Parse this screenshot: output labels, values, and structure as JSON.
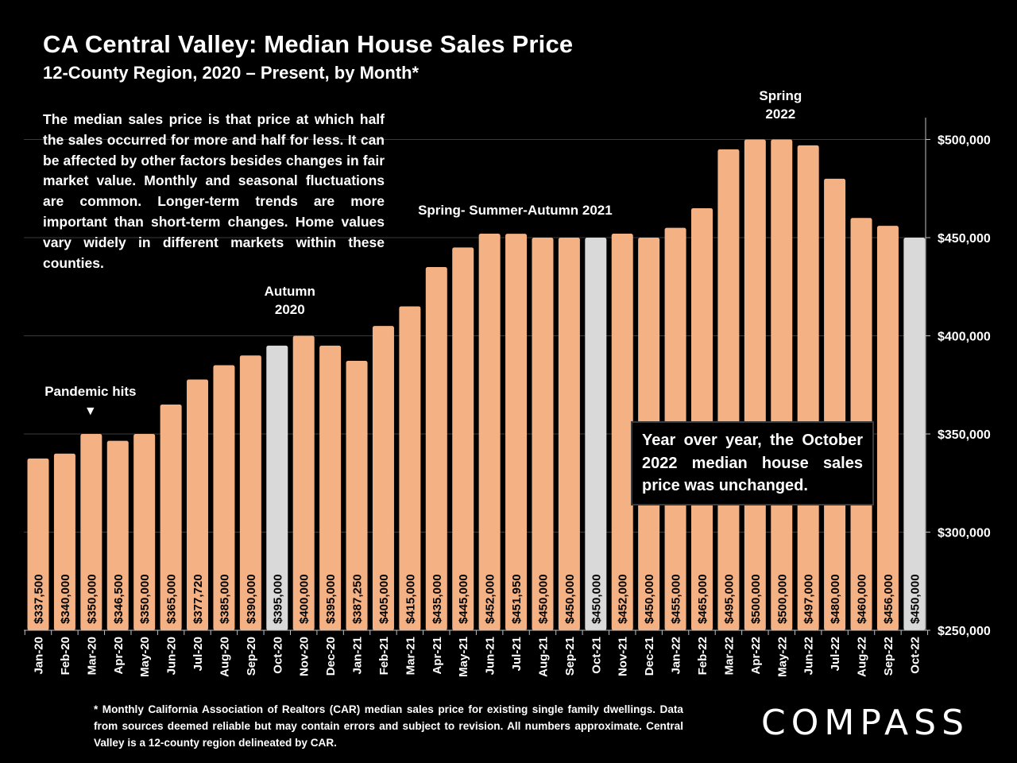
{
  "header": {
    "title": "CA Central Valley: Median House Sales Price",
    "subtitle": "12-County Region, 2020 – Present, by Month*"
  },
  "description": "The median sales price is that price at which half the sales occurred for more and half for less. It can be affected by other factors besides changes in fair market value. Monthly and seasonal fluctuations are common. Longer-term trends are more important than short-term changes. Home values vary widely in different markets within these counties.",
  "yoy_note": "Year over year, the October 2022 median house sales price was unchanged.",
  "footnote": "* Monthly California Association of Realtors (CAR) median sales price for existing single family dwellings. Data from sources deemed reliable but may contain errors and subject to revision. All numbers approximate. Central Valley is a 12-county region delineated by CAR.",
  "logo": {
    "prefix": "C",
    "mark": "O",
    "suffix": "MPASS"
  },
  "colors": {
    "bar": "#F4B183",
    "highlight": "#D9D9D9",
    "background": "#000000",
    "text": "#FFFFFF",
    "grid": "#3A3A3A"
  },
  "chart_data": {
    "type": "bar",
    "title": "CA Central Valley: Median House Sales Price",
    "ylabel": "",
    "xlabel": "",
    "ylim": [
      250000,
      510000
    ],
    "y_ticks": [
      250000,
      300000,
      350000,
      400000,
      450000,
      500000
    ],
    "y_tick_labels": [
      "$250,000",
      "$300,000",
      "$350,000",
      "$400,000",
      "$450,000",
      "$500,000"
    ],
    "categories": [
      "Jan-20",
      "Feb-20",
      "Mar-20",
      "Apr-20",
      "May-20",
      "Jun-20",
      "Jul-20",
      "Aug-20",
      "Sep-20",
      "Oct-20",
      "Nov-20",
      "Dec-20",
      "Jan-21",
      "Feb-21",
      "Mar-21",
      "Apr-21",
      "May-21",
      "Jun-21",
      "Jul-21",
      "Aug-21",
      "Sep-21",
      "Oct-21",
      "Nov-21",
      "Dec-21",
      "Jan-22",
      "Feb-22",
      "Mar-22",
      "Apr-22",
      "May-22",
      "Jun-22",
      "Jul-22",
      "Aug-22",
      "Sep-22",
      "Oct-22"
    ],
    "values": [
      337500,
      340000,
      350000,
      346500,
      350000,
      365000,
      377720,
      385000,
      390000,
      395000,
      400000,
      395000,
      387250,
      405000,
      415000,
      435000,
      445000,
      452000,
      451950,
      450000,
      450000,
      450000,
      452000,
      450000,
      455000,
      465000,
      495000,
      500000,
      500000,
      497000,
      480000,
      460000,
      456000,
      450000
    ],
    "value_labels": [
      "$337,500",
      "$340,000",
      "$350,000",
      "$346,500",
      "$350,000",
      "$365,000",
      "$377,720",
      "$385,000",
      "$390,000",
      "$395,000",
      "$400,000",
      "$395,000",
      "$387,250",
      "$405,000",
      "$415,000",
      "$435,000",
      "$445,000",
      "$452,000",
      "$451,950",
      "$450,000",
      "$450,000",
      "$450,000",
      "$452,000",
      "$450,000",
      "$455,000",
      "$465,000",
      "$495,000",
      "$500,000",
      "$500,000",
      "$497,000",
      "$480,000",
      "$460,000",
      "$456,000",
      "$450,000"
    ],
    "highlighted": [
      "Oct-20",
      "Oct-21",
      "Oct-22"
    ],
    "annotations": [
      {
        "category": "Mar-20",
        "lines": [
          "Pandemic hits"
        ],
        "marker": "▼"
      },
      {
        "category": "Oct-20",
        "lines": [
          "Autumn",
          "2020"
        ]
      },
      {
        "category": "Sep-21",
        "lines": [
          "Spring- Summer-Autumn 2021"
        ]
      },
      {
        "category": "Apr-22",
        "lines": [
          "Spring",
          "2022"
        ]
      }
    ]
  }
}
